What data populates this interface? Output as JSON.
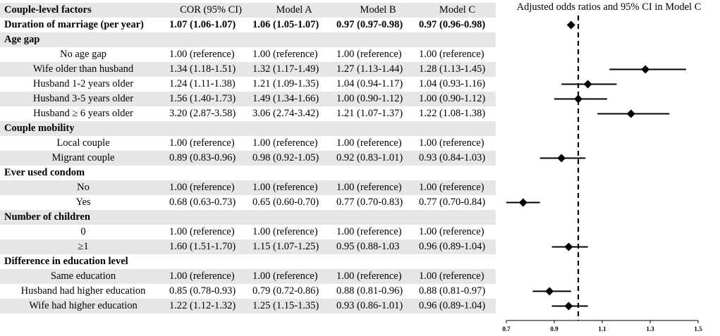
{
  "header": {
    "factor": "Couple-level factors",
    "cor": "COR (95% CI)",
    "model_a": "Model A",
    "model_b": "Model B",
    "model_c": "Model C",
    "forest_title": "Adjusted odds ratios and 95% CI  in Model C"
  },
  "rows": [
    {
      "type": "section",
      "label": "Duration of marriage (per year)",
      "cor": "1.07 (1.06-1.07)",
      "a": "1.06 (1.05-1.07)",
      "b": "0.97 (0.97-0.98)",
      "c": "0.97 (0.96-0.98)"
    },
    {
      "type": "section",
      "label": "Age gap"
    },
    {
      "type": "item",
      "label": "No age gap",
      "cor": "1.00 (reference)",
      "a": "1.00 (reference)",
      "b": "1.00 (reference)",
      "c": "1.00 (reference)"
    },
    {
      "type": "item",
      "label": "Wife older than husband",
      "cor": "1.34 (1.18-1.51)",
      "a": "1.32 (1.17-1.49)",
      "b": "1.27 (1.13-1.44)",
      "c": "1.28 (1.13-1.45)"
    },
    {
      "type": "item",
      "label": "Husband 1-2 years older",
      "cor": "1.24 (1.11-1.38)",
      "a": "1.21 (1.09-1.35)",
      "b": "1.04 (0.94-1.17)",
      "c": "1.04 (0.93-1.16)"
    },
    {
      "type": "item",
      "label": "Husband 3-5 years older",
      "cor": "1.56 (1.40-1.73)",
      "a": "1.49 (1.34-1.66)",
      "b": "1.00 (0.90-1.12)",
      "c": "1.00 (0.90-1.12)"
    },
    {
      "type": "item",
      "label": "Husband ≥ 6 years older",
      "cor": "3.20 (2.87-3.58)",
      "a": "3.06 (2.74-3.42)",
      "b": "1.21 (1.07-1.37)",
      "c": "1.22 (1.08-1.38)"
    },
    {
      "type": "section",
      "label": "Couple mobility"
    },
    {
      "type": "item",
      "label": "Local couple",
      "cor": "1.00 (reference)",
      "a": "1.00 (reference)",
      "b": "1.00 (reference)",
      "c": "1.00 (reference)"
    },
    {
      "type": "item",
      "label": "Migrant couple",
      "cor": "0.89 (0.83-0.96)",
      "a": "0.98 (0.92-1.05)",
      "b": "0.92 (0.83-1.01)",
      "c": "0.93 (0.84-1.03)"
    },
    {
      "type": "section",
      "label": "Ever used condom"
    },
    {
      "type": "item",
      "label": "No",
      "cor": "1.00 (reference)",
      "a": "1.00 (reference)",
      "b": "1.00 (reference)",
      "c": "1.00 (reference)"
    },
    {
      "type": "item",
      "label": "Yes",
      "cor": "0.68 (0.63-0.73)",
      "a": "0.65 (0.60-0.70)",
      "b": "0.77 (0.70-0.83)",
      "c": "0.77 (0.70-0.84)"
    },
    {
      "type": "section",
      "label": "Number of children"
    },
    {
      "type": "item",
      "label": "0",
      "cor": "1.00 (reference)",
      "a": "1.00 (reference)",
      "b": "1.00 (reference)",
      "c": "1.00 (reference)"
    },
    {
      "type": "item",
      "label": "≥1",
      "cor": "1.60 (1.51-1.70)",
      "a": "1.15 (1.07-1.25)",
      "b": "0.95 (0.88-1.03",
      "c": "0.96 (0.89-1.04)"
    },
    {
      "type": "section",
      "label": "Difference in education level"
    },
    {
      "type": "item",
      "label": "Same education",
      "cor": "1.00 (reference)",
      "a": "1.00 (reference)",
      "b": "1.00 (reference)",
      "c": "1.00 (reference)"
    },
    {
      "type": "item",
      "label": "Husband had higher education",
      "cor": "0.85 (0.78-0.93)",
      "a": "0.79 (0.72-0.86)",
      "b": "0.88 (0.81-0.96)",
      "c": "0.88 (0.81-0.97)"
    },
    {
      "type": "item",
      "label": "Wife had higher education",
      "cor": "1.22 (1.12-1.32)",
      "a": "1.25 (1.15-1.35)",
      "b": "0.93 (0.86-1.01)",
      "c": "0.96 (0.89-1.04)"
    }
  ],
  "chart_data": {
    "type": "forest",
    "title": "Adjusted odds ratios and 95% CI  in Model C",
    "reference_line": 1.0,
    "xlim": [
      0.7,
      1.5
    ],
    "xticks": [
      "0.7",
      "0.9",
      "1.1",
      "1.3",
      "1.5"
    ],
    "points": [
      {
        "row": 0,
        "or": 0.97,
        "lo": 0.96,
        "hi": 0.98
      },
      {
        "row": 3,
        "or": 1.28,
        "lo": 1.13,
        "hi": 1.45
      },
      {
        "row": 4,
        "or": 1.04,
        "lo": 0.93,
        "hi": 1.16
      },
      {
        "row": 5,
        "or": 1.0,
        "lo": 0.9,
        "hi": 1.12
      },
      {
        "row": 6,
        "or": 1.22,
        "lo": 1.08,
        "hi": 1.38
      },
      {
        "row": 9,
        "or": 0.93,
        "lo": 0.84,
        "hi": 1.03
      },
      {
        "row": 12,
        "or": 0.77,
        "lo": 0.7,
        "hi": 0.84
      },
      {
        "row": 15,
        "or": 0.96,
        "lo": 0.89,
        "hi": 1.04
      },
      {
        "row": 18,
        "or": 0.88,
        "lo": 0.81,
        "hi": 0.97
      },
      {
        "row": 19,
        "or": 0.96,
        "lo": 0.89,
        "hi": 1.04
      }
    ]
  }
}
